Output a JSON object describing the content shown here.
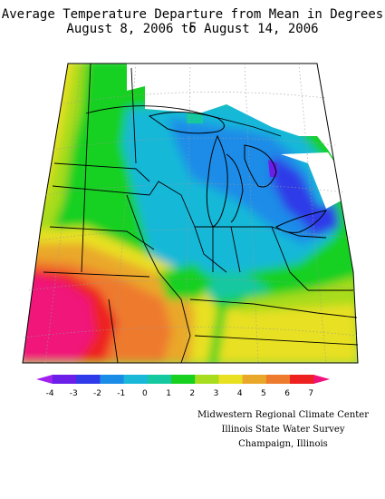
{
  "header": {
    "title_line1": "Average Temperature Departure from Mean in Degrees F",
    "title_line2": "August 8, 2006 to August 14, 2006"
  },
  "legend": {
    "tick_labels": [
      "-4",
      "-3",
      "-2",
      "-1",
      "0",
      "1",
      "2",
      "3",
      "4",
      "5",
      "6",
      "7"
    ],
    "colors": [
      "#a020f0",
      "#6a1ee8",
      "#2f3ae8",
      "#1a8ce8",
      "#19b8d8",
      "#16c8a0",
      "#18d020",
      "#a8dc1e",
      "#e8e020",
      "#eaa82a",
      "#ee7a2e",
      "#ee2020",
      "#f0127a"
    ]
  },
  "credits": {
    "line1": "Midwestern Regional Climate Center",
    "line2": "Illinois State Water Survey",
    "line3": "Champaign, Illinois"
  }
}
